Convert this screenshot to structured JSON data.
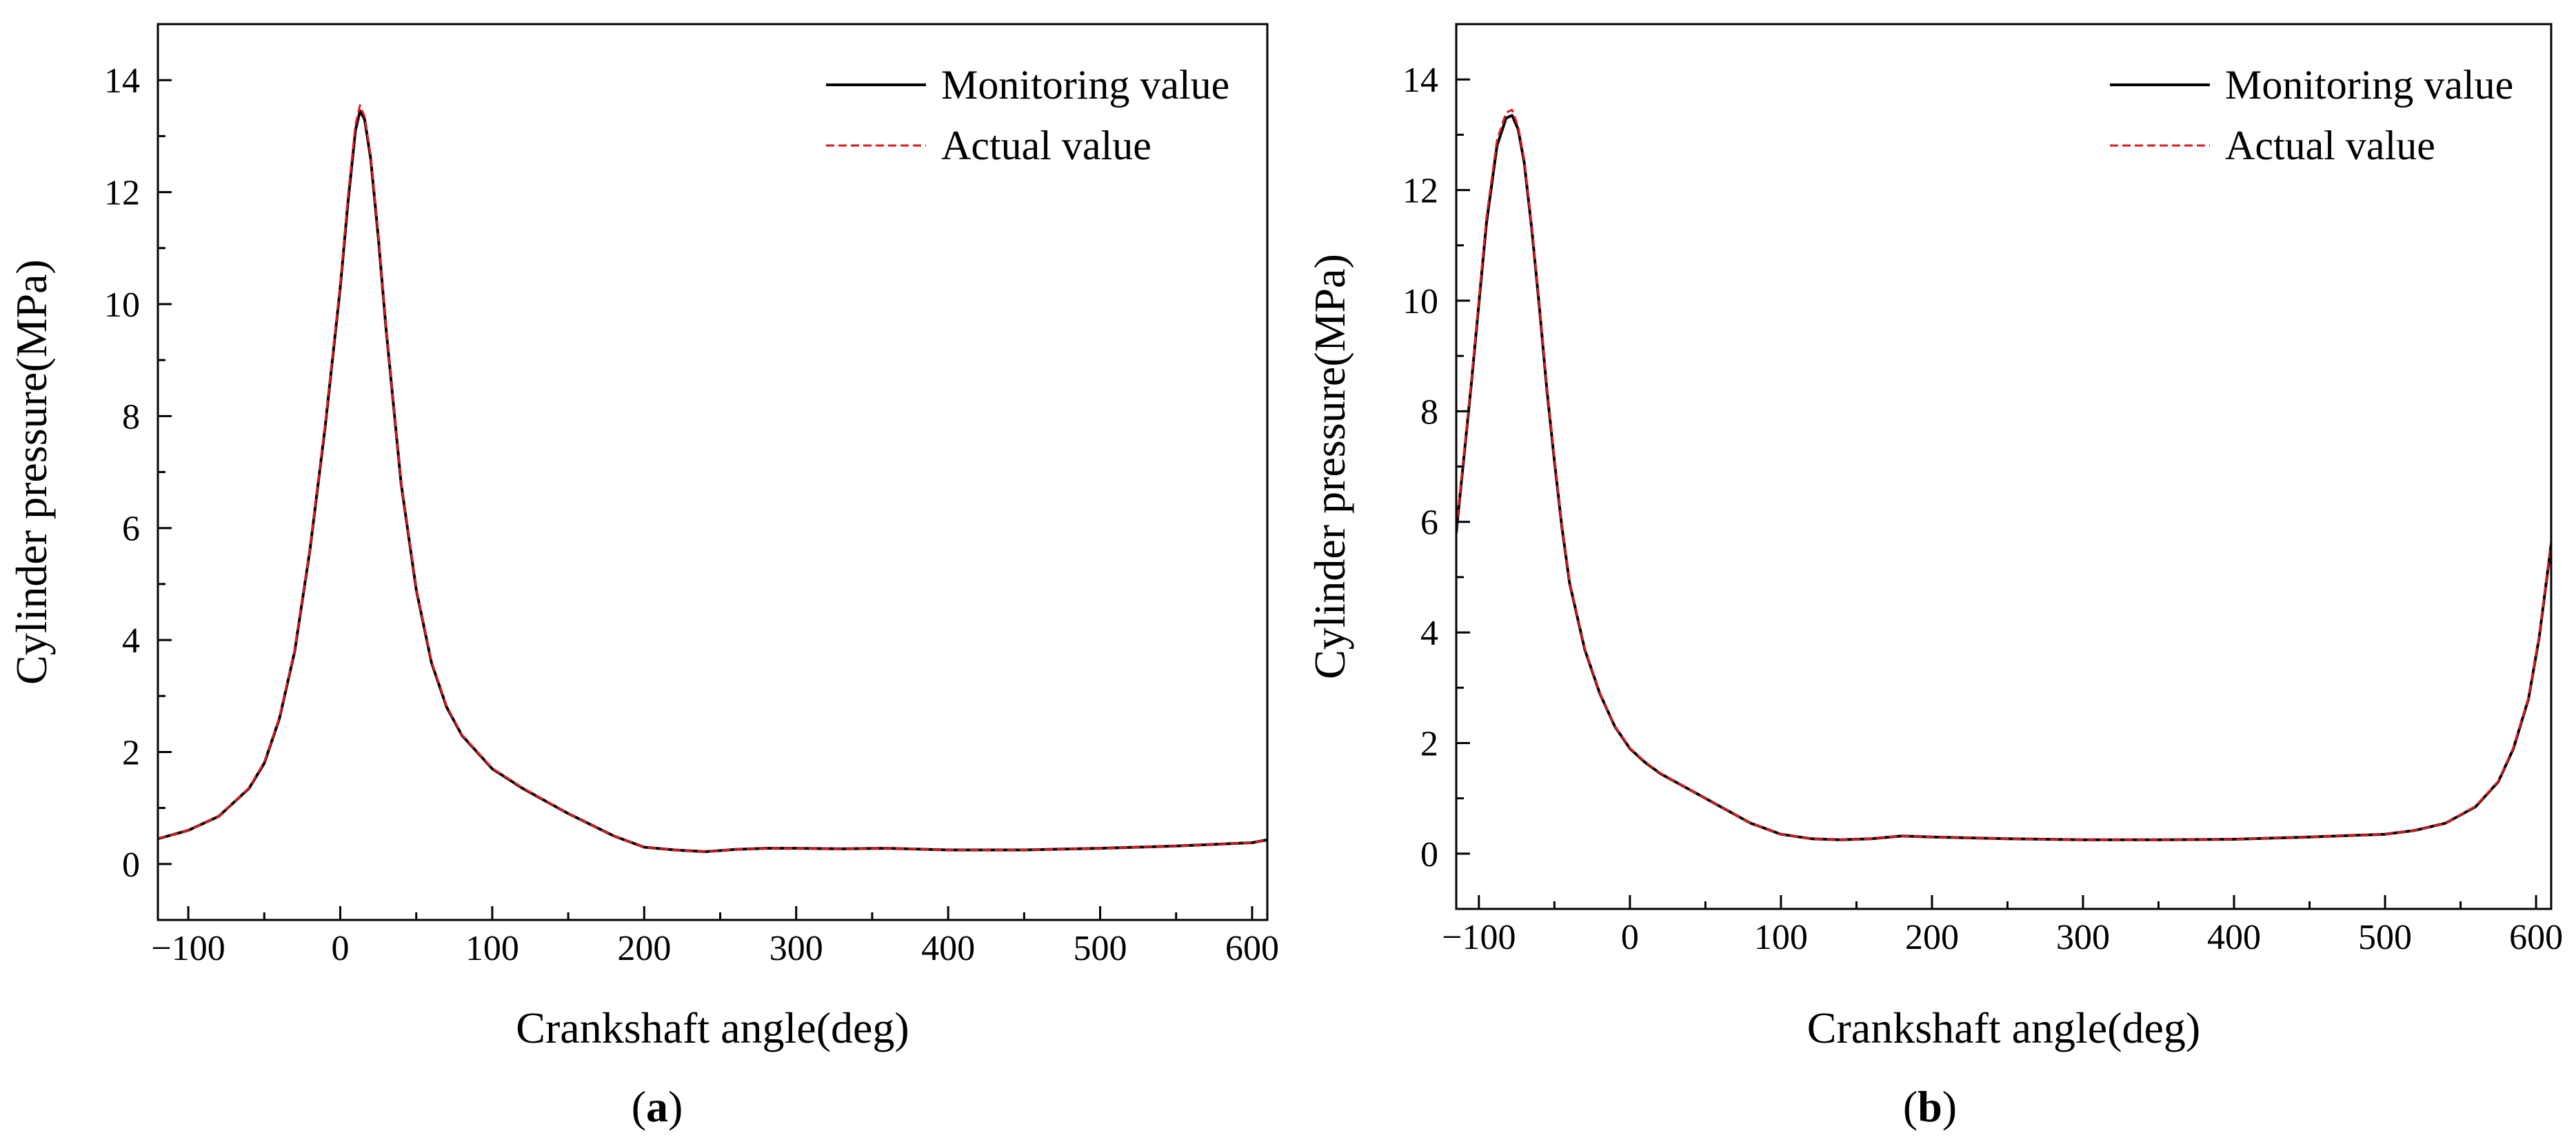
{
  "chart_data": [
    {
      "type": "line",
      "panel_label": "a",
      "xlabel": "Crankshaft angle(deg)",
      "ylabel": "Cylinder pressure(MPa)",
      "xlim": [
        -120,
        610
      ],
      "ylim": [
        -1,
        15
      ],
      "xticks": [
        -100,
        0,
        100,
        200,
        300,
        400,
        500,
        600
      ],
      "yticks": [
        0,
        2,
        4,
        6,
        8,
        10,
        12,
        14
      ],
      "xtick_labels": [
        "−100",
        "0",
        "100",
        "200",
        "300",
        "400",
        "500",
        "600"
      ],
      "ytick_labels": [
        "0",
        "2",
        "4",
        "6",
        "8",
        "10",
        "12",
        "14"
      ],
      "grid": false,
      "legend_position": "top-right",
      "series": [
        {
          "name": "Monitoring value",
          "color": "#000000",
          "style": "solid",
          "x": [
            -120,
            -100,
            -80,
            -60,
            -50,
            -40,
            -30,
            -20,
            -10,
            0,
            5,
            10,
            13,
            16,
            20,
            25,
            30,
            40,
            50,
            60,
            70,
            80,
            100,
            120,
            150,
            180,
            200,
            220,
            240,
            260,
            280,
            300,
            330,
            360,
            400,
            450,
            500,
            550,
            600,
            610
          ],
          "y": [
            0.45,
            0.6,
            0.85,
            1.35,
            1.8,
            2.6,
            3.8,
            5.6,
            7.8,
            10.3,
            11.8,
            13.1,
            13.45,
            13.3,
            12.6,
            11.2,
            9.6,
            6.8,
            4.9,
            3.6,
            2.8,
            2.3,
            1.7,
            1.35,
            0.9,
            0.5,
            0.3,
            0.25,
            0.22,
            0.26,
            0.28,
            0.28,
            0.27,
            0.28,
            0.25,
            0.25,
            0.28,
            0.32,
            0.38,
            0.43
          ]
        },
        {
          "name": "Actual value",
          "color": "#e0191e",
          "style": "dashed",
          "x": [
            -120,
            -100,
            -80,
            -60,
            -50,
            -40,
            -30,
            -20,
            -10,
            0,
            5,
            10,
            13,
            16,
            20,
            25,
            30,
            40,
            50,
            60,
            70,
            80,
            100,
            120,
            150,
            180,
            200,
            220,
            240,
            260,
            280,
            300,
            330,
            360,
            400,
            450,
            500,
            550,
            600,
            610
          ],
          "y": [
            0.45,
            0.6,
            0.85,
            1.36,
            1.82,
            2.62,
            3.82,
            5.62,
            7.85,
            10.35,
            11.9,
            13.2,
            13.55,
            13.35,
            12.65,
            11.25,
            9.62,
            6.82,
            4.92,
            3.62,
            2.82,
            2.31,
            1.71,
            1.36,
            0.9,
            0.5,
            0.3,
            0.25,
            0.22,
            0.26,
            0.28,
            0.28,
            0.27,
            0.28,
            0.25,
            0.25,
            0.28,
            0.32,
            0.38,
            0.43
          ]
        }
      ]
    },
    {
      "type": "line",
      "panel_label": "b",
      "xlabel": "Crankshaft angle(deg)",
      "ylabel": "Cylinder pressure(MPa)",
      "xlim": [
        -115,
        610
      ],
      "ylim": [
        -1,
        15
      ],
      "xticks": [
        -100,
        0,
        100,
        200,
        300,
        400,
        500,
        600
      ],
      "yticks": [
        0,
        2,
        4,
        6,
        8,
        10,
        12,
        14
      ],
      "xtick_labels": [
        "−100",
        "0",
        "100",
        "200",
        "300",
        "400",
        "500",
        "600"
      ],
      "ytick_labels": [
        "0",
        "2",
        "4",
        "6",
        "8",
        "10",
        "12",
        "14"
      ],
      "grid": false,
      "legend_position": "top-right",
      "series": [
        {
          "name": "Monitoring value",
          "color": "#000000",
          "style": "solid",
          "x": [
            -115,
            -105,
            -95,
            -88,
            -82,
            -78,
            -74,
            -70,
            -65,
            -60,
            -55,
            -50,
            -45,
            -40,
            -30,
            -20,
            -10,
            0,
            10,
            20,
            30,
            40,
            50,
            60,
            80,
            100,
            120,
            140,
            160,
            180,
            200,
            250,
            300,
            350,
            400,
            450,
            500,
            520,
            540,
            560,
            575,
            585,
            595,
            602,
            610
          ],
          "y": [
            5.8,
            8.5,
            11.4,
            12.8,
            13.3,
            13.35,
            13.1,
            12.5,
            11.3,
            9.9,
            8.4,
            7.1,
            5.9,
            4.9,
            3.7,
            2.9,
            2.3,
            1.9,
            1.65,
            1.45,
            1.3,
            1.15,
            1.0,
            0.85,
            0.55,
            0.35,
            0.27,
            0.25,
            0.27,
            0.32,
            0.3,
            0.27,
            0.25,
            0.25,
            0.26,
            0.3,
            0.35,
            0.42,
            0.55,
            0.85,
            1.3,
            1.9,
            2.8,
            3.9,
            5.6
          ]
        },
        {
          "name": "Actual value",
          "color": "#e0191e",
          "style": "dashed",
          "x": [
            -115,
            -105,
            -95,
            -88,
            -82,
            -78,
            -74,
            -70,
            -65,
            -60,
            -55,
            -50,
            -45,
            -40,
            -30,
            -20,
            -10,
            0,
            10,
            20,
            30,
            40,
            50,
            60,
            80,
            100,
            120,
            140,
            160,
            180,
            200,
            250,
            300,
            350,
            400,
            450,
            500,
            520,
            540,
            560,
            575,
            585,
            595,
            602,
            610
          ],
          "y": [
            5.85,
            8.55,
            11.5,
            12.9,
            13.4,
            13.45,
            13.15,
            12.55,
            11.35,
            9.95,
            8.45,
            7.15,
            5.92,
            4.92,
            3.72,
            2.91,
            2.31,
            1.91,
            1.66,
            1.46,
            1.3,
            1.15,
            1.0,
            0.85,
            0.55,
            0.35,
            0.27,
            0.25,
            0.27,
            0.32,
            0.3,
            0.27,
            0.25,
            0.25,
            0.26,
            0.3,
            0.35,
            0.42,
            0.55,
            0.86,
            1.31,
            1.92,
            2.82,
            3.92,
            5.65
          ]
        }
      ]
    }
  ]
}
